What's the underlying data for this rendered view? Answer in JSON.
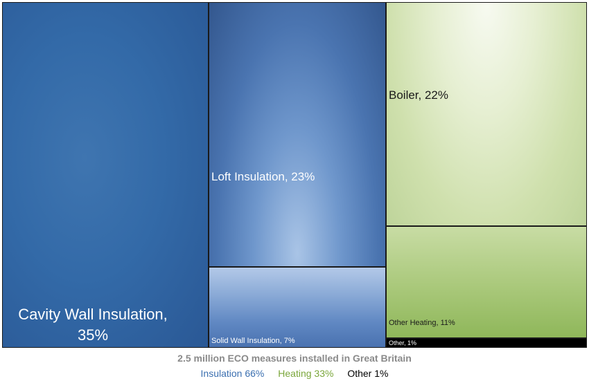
{
  "chart_data": {
    "type": "treemap",
    "caption": "2.5 million ECO measures installed in Great Britain",
    "items": [
      {
        "id": "cavity",
        "label": "Cavity Wall Insulation, 35%",
        "group": "Insulation",
        "value": 35
      },
      {
        "id": "loft",
        "label": "Loft Insulation, 23%",
        "group": "Insulation",
        "value": 23
      },
      {
        "id": "solid",
        "label": "Solid Wall Insulation, 7%",
        "group": "Insulation",
        "value": 7
      },
      {
        "id": "boiler",
        "label": "Boiler, 22%",
        "group": "Heating",
        "value": 22
      },
      {
        "id": "otherheat",
        "label": "Other Heating, 11%",
        "group": "Heating",
        "value": 11
      },
      {
        "id": "other",
        "label": "Other, 1%",
        "group": "Other",
        "value": 1
      }
    ],
    "groups": [
      {
        "label": "Insulation 66%",
        "color": "#3b6fb0",
        "value": 66
      },
      {
        "label": "Heating 33%",
        "color": "#7aa63a",
        "value": 33
      },
      {
        "label": "Other 1%",
        "color": "#000000",
        "value": 1
      }
    ]
  }
}
